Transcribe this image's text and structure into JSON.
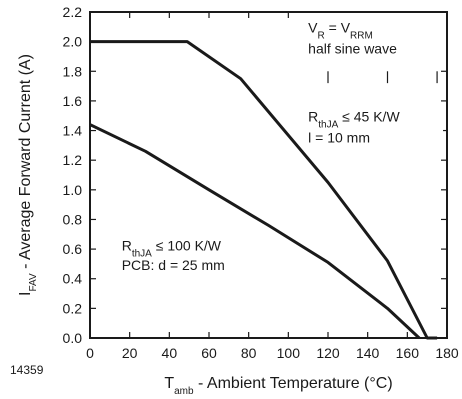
{
  "chart_data": {
    "type": "line",
    "title": "",
    "figure_id": "14359",
    "xlabel": {
      "main": "T",
      "sub": "amb",
      "rest": " - Ambient Temperature (°C)"
    },
    "ylabel": {
      "main": "I",
      "sub": "FAV",
      "rest": " - Average Forward Current (A)"
    },
    "xlim": [
      0,
      180
    ],
    "ylim": [
      0.0,
      2.2
    ],
    "x_ticks": [
      0,
      20,
      40,
      60,
      80,
      100,
      120,
      140,
      160,
      180
    ],
    "y_ticks": [
      "0.0",
      "0.2",
      "0.4",
      "0.6",
      "0.8",
      "1.0",
      "1.2",
      "1.4",
      "1.6",
      "1.8",
      "2.0",
      "2.2"
    ],
    "grid": false,
    "series": [
      {
        "x": [
          0,
          49,
          76,
          120,
          150,
          170,
          175
        ],
        "y": [
          2.0,
          2.0,
          1.75,
          1.05,
          0.52,
          0.0,
          0.0
        ]
      },
      {
        "x": [
          0,
          28,
          60,
          90,
          120,
          150,
          166
        ],
        "y": [
          1.44,
          1.26,
          1.0,
          0.76,
          0.51,
          0.2,
          0.0
        ]
      }
    ],
    "annotations": {
      "condition_box": {
        "line1_parts": [
          "V",
          "R",
          " = V",
          "RRM"
        ],
        "line2": "half sine wave",
        "marker_xs": [
          120,
          150,
          175
        ]
      },
      "upper_curve_label": {
        "line1_parts": [
          "R",
          "thJA",
          " ≤ 45 K/W"
        ],
        "line2": "l = 10 mm"
      },
      "lower_curve_label": {
        "line1_parts": [
          "R",
          "thJA",
          " ≤ 100 K/W"
        ],
        "line2": "PCB: d = 25 mm"
      }
    }
  }
}
